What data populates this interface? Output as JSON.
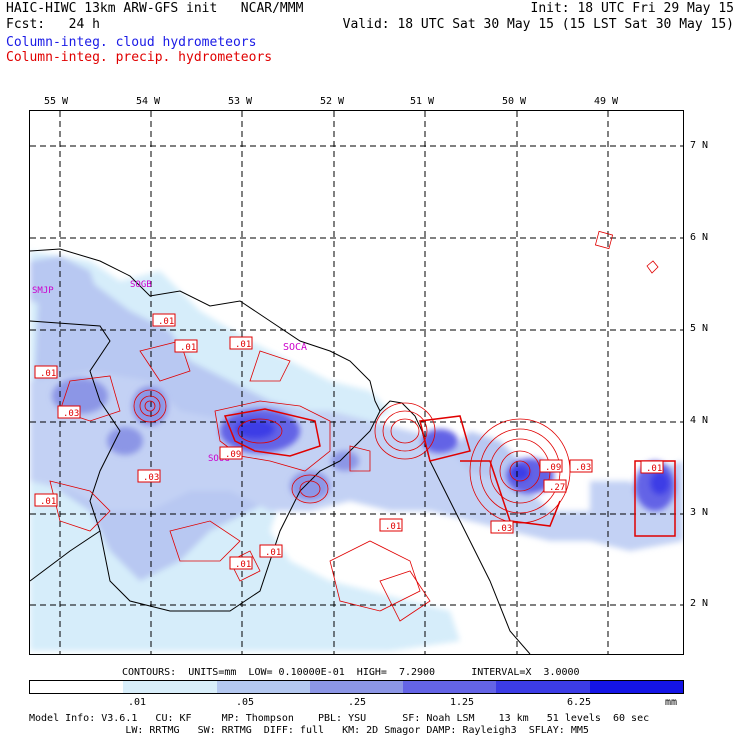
{
  "header": {
    "left1": "HAIC-HIWC 13km ARW-GFS init   NCAR/MMM",
    "left2": "Fcst:   24 h",
    "right1": "Init: 18 UTC Fri 29 May 15",
    "right2": "Valid: 18 UTC Sat 30 May 15 (15 LST Sat 30 May 15)",
    "field1": "Column-integ. cloud hydrometeors",
    "field2": "Column-integ. precip. hydrometeors"
  },
  "map": {
    "lon_labels": [
      "55 W",
      "54 W",
      "53 W",
      "52 W",
      "51 W",
      "50 W",
      "49 W"
    ],
    "lat_labels": [
      "7 N",
      "6 N",
      "5 N",
      "4 N",
      "3 N",
      "2 N"
    ],
    "place_labels": [
      "SMJP",
      "SOGB",
      "SOCA",
      "SOOG"
    ],
    "contour_labels": [
      ".01",
      ".01",
      ".01",
      ".01",
      ".03",
      ".03",
      ".09",
      ".09",
      ".03",
      ".27",
      ".01",
      ".01",
      ".01",
      ".03",
      ".01",
      ".01"
    ],
    "colors": {
      "cloud": "#1a1ae6",
      "precip": "#e00000"
    }
  },
  "contour_info": "CONTOURS:  UNITS=mm  LOW= 0.10000E-01  HIGH=  7.2900      INTERVAL=X  3.0000",
  "legend": {
    "ticks": [
      ".01",
      ".05",
      ".25",
      "1.25",
      "6.25",
      "mm"
    ],
    "colors": [
      "#ffffff",
      "#d8eefa",
      "#b4c8f0",
      "#8c96e6",
      "#6464e6",
      "#3c3ce6",
      "#1414e6"
    ]
  },
  "model_info": {
    "line1": "Model Info: V3.6.1   CU: KF     MP: Thompson    PBL: YSU      SF: Noah LSM    13 km   51 levels  60 sec",
    "line2": "                LW: RRTMG   SW: RRTMG  DIFF: full   KM: 2D Smagor DAMP: Rayleigh3  SFLAY: MM5"
  }
}
